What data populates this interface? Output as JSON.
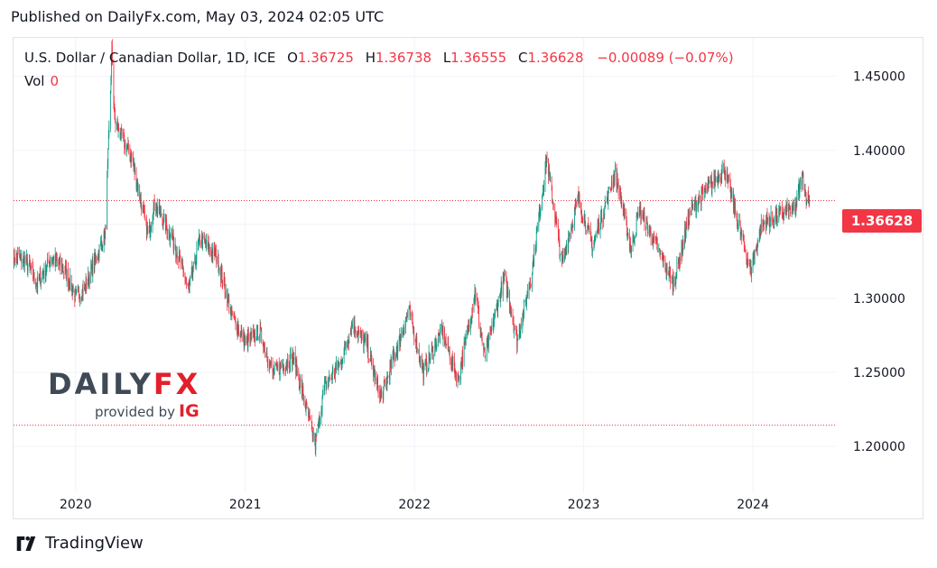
{
  "header": {
    "published": "Published on DailyFx.com, May 03, 2024 02:05 UTC"
  },
  "legend": {
    "symbol": "U.S. Dollar / Canadian Dollar, 1D, ICE",
    "open_label": "O",
    "open": "1.36725",
    "high_label": "H",
    "high": "1.36738",
    "low_label": "L",
    "low": "1.36555",
    "close_label": "C",
    "close": "1.36628",
    "change": "−0.00089 (−0.07%)",
    "vol_label": "Vol",
    "vol": "0"
  },
  "last_price_tag": "1.36628",
  "watermark": {
    "brand_a": "DAILY",
    "brand_b": "FX",
    "provided": "provided by",
    "ig": "IG"
  },
  "footer": {
    "brand": "TradingView"
  },
  "colors": {
    "up": "#089981",
    "down": "#f23645",
    "grid": "#f0f3fa",
    "hline_red": "#f23645"
  },
  "chart_data": {
    "type": "candlestick",
    "title": "U.S. Dollar / Canadian Dollar, 1D, ICE",
    "x_ticks": [
      "2020",
      "2021",
      "2022",
      "2023",
      "2024"
    ],
    "y_ticks": [
      "1.45000",
      "1.40000",
      "1.35000",
      "1.30000",
      "1.25000",
      "1.20000"
    ],
    "ylim": [
      1.169,
      1.476
    ],
    "xlim": [
      "2019-08-20",
      "2024-06-30"
    ],
    "last_close": 1.36628,
    "horizontal_lines": [
      1.36628,
      1.2145
    ],
    "close_path": [
      [
        "2019-08-20",
        1.3285
      ],
      [
        "2019-09-15",
        1.3255
      ],
      [
        "2019-10-10",
        1.3095
      ],
      [
        "2019-11-10",
        1.3275
      ],
      [
        "2019-12-10",
        1.3185
      ],
      [
        "2020-01-01",
        1.3005
      ],
      [
        "2020-01-20",
        1.306
      ],
      [
        "2020-02-15",
        1.3285
      ],
      [
        "2020-03-05",
        1.343
      ],
      [
        "2020-03-19",
        1.467
      ],
      [
        "2020-03-25",
        1.42
      ],
      [
        "2020-04-15",
        1.405
      ],
      [
        "2020-05-01",
        1.395
      ],
      [
        "2020-06-05",
        1.342
      ],
      [
        "2020-06-20",
        1.365
      ],
      [
        "2020-07-31",
        1.338
      ],
      [
        "2020-09-01",
        1.305
      ],
      [
        "2020-09-25",
        1.34
      ],
      [
        "2020-11-01",
        1.328
      ],
      [
        "2020-12-01",
        1.29
      ],
      [
        "2021-01-01",
        1.27
      ],
      [
        "2021-02-01",
        1.278
      ],
      [
        "2021-03-01",
        1.25
      ],
      [
        "2021-04-15",
        1.26
      ],
      [
        "2021-06-01",
        1.201
      ],
      [
        "2021-06-20",
        1.24
      ],
      [
        "2021-07-25",
        1.256
      ],
      [
        "2021-08-20",
        1.283
      ],
      [
        "2021-09-20",
        1.268
      ],
      [
        "2021-10-20",
        1.232
      ],
      [
        "2021-12-20",
        1.292
      ],
      [
        "2022-01-20",
        1.25
      ],
      [
        "2022-03-01",
        1.278
      ],
      [
        "2022-04-05",
        1.245
      ],
      [
        "2022-05-12",
        1.305
      ],
      [
        "2022-06-01",
        1.26
      ],
      [
        "2022-07-14",
        1.315
      ],
      [
        "2022-08-10",
        1.272
      ],
      [
        "2022-09-10",
        1.315
      ],
      [
        "2022-10-13",
        1.395
      ],
      [
        "2022-11-15",
        1.323
      ],
      [
        "2022-12-20",
        1.368
      ],
      [
        "2023-01-20",
        1.335
      ],
      [
        "2023-03-10",
        1.386
      ],
      [
        "2023-04-13",
        1.333
      ],
      [
        "2023-05-01",
        1.36
      ],
      [
        "2023-07-14",
        1.31
      ],
      [
        "2023-08-20",
        1.36
      ],
      [
        "2023-10-31",
        1.388
      ],
      [
        "2023-12-27",
        1.318
      ],
      [
        "2024-01-20",
        1.35
      ],
      [
        "2024-03-01",
        1.357
      ],
      [
        "2024-04-01",
        1.36
      ],
      [
        "2024-04-16",
        1.383
      ],
      [
        "2024-04-25",
        1.369
      ],
      [
        "2024-05-02",
        1.36628
      ]
    ]
  }
}
